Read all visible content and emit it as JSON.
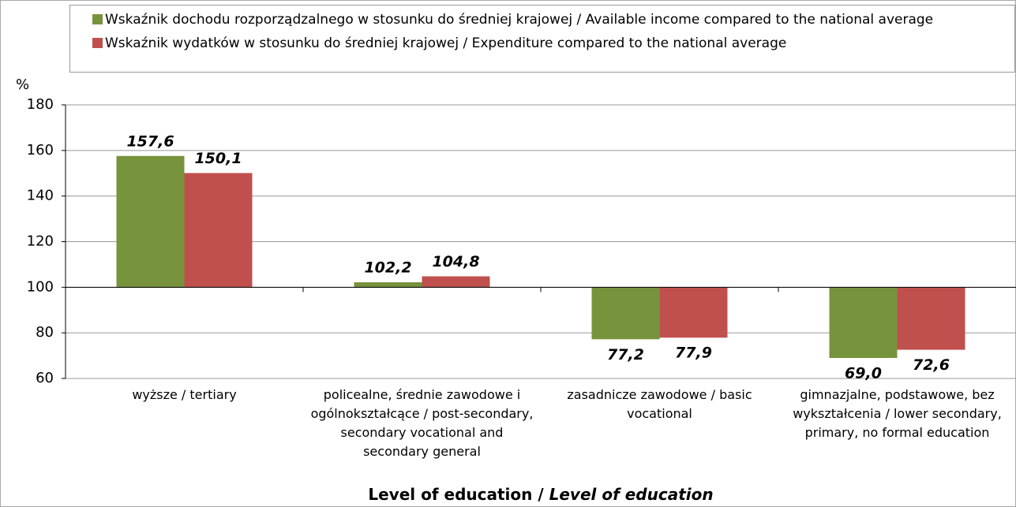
{
  "chart_data": {
    "type": "bar",
    "categories": [
      "wyższe / tertiary",
      "policealne, średnie zawodowe i ogólnokształcące / post-secondary, secondary vocational and secondary general",
      "zasadnicze zawodowe / basic vocational",
      "gimnazjalne, podstawowe, bez wykształcenia / lower secondary, primary, no formal education"
    ],
    "series": [
      {
        "name": "Wskaźnik dochodu rozporządzalnego w stosunku do średniej krajowej / Available income compared to the national average",
        "color": "#77933c",
        "values": [
          157.6,
          102.2,
          77.2,
          69.0
        ],
        "value_labels": [
          "157,6",
          "102,2",
          "77,2",
          "69,0"
        ]
      },
      {
        "name": "Wskaźnik wydatków w stosunku do średniej krajowej / Expenditure compared to the national average",
        "color": "#c0504d",
        "values": [
          150.1,
          104.8,
          77.9,
          72.6
        ],
        "value_labels": [
          "150,1",
          "104,8",
          "77,9",
          "72,6"
        ]
      }
    ],
    "baseline": 100,
    "ylabel": "%",
    "xlabel": [
      "Level of education / ",
      "Level of education"
    ],
    "ylim": [
      60,
      180
    ],
    "yticks": [
      60,
      80,
      100,
      120,
      140,
      160,
      180
    ],
    "grid": true
  }
}
